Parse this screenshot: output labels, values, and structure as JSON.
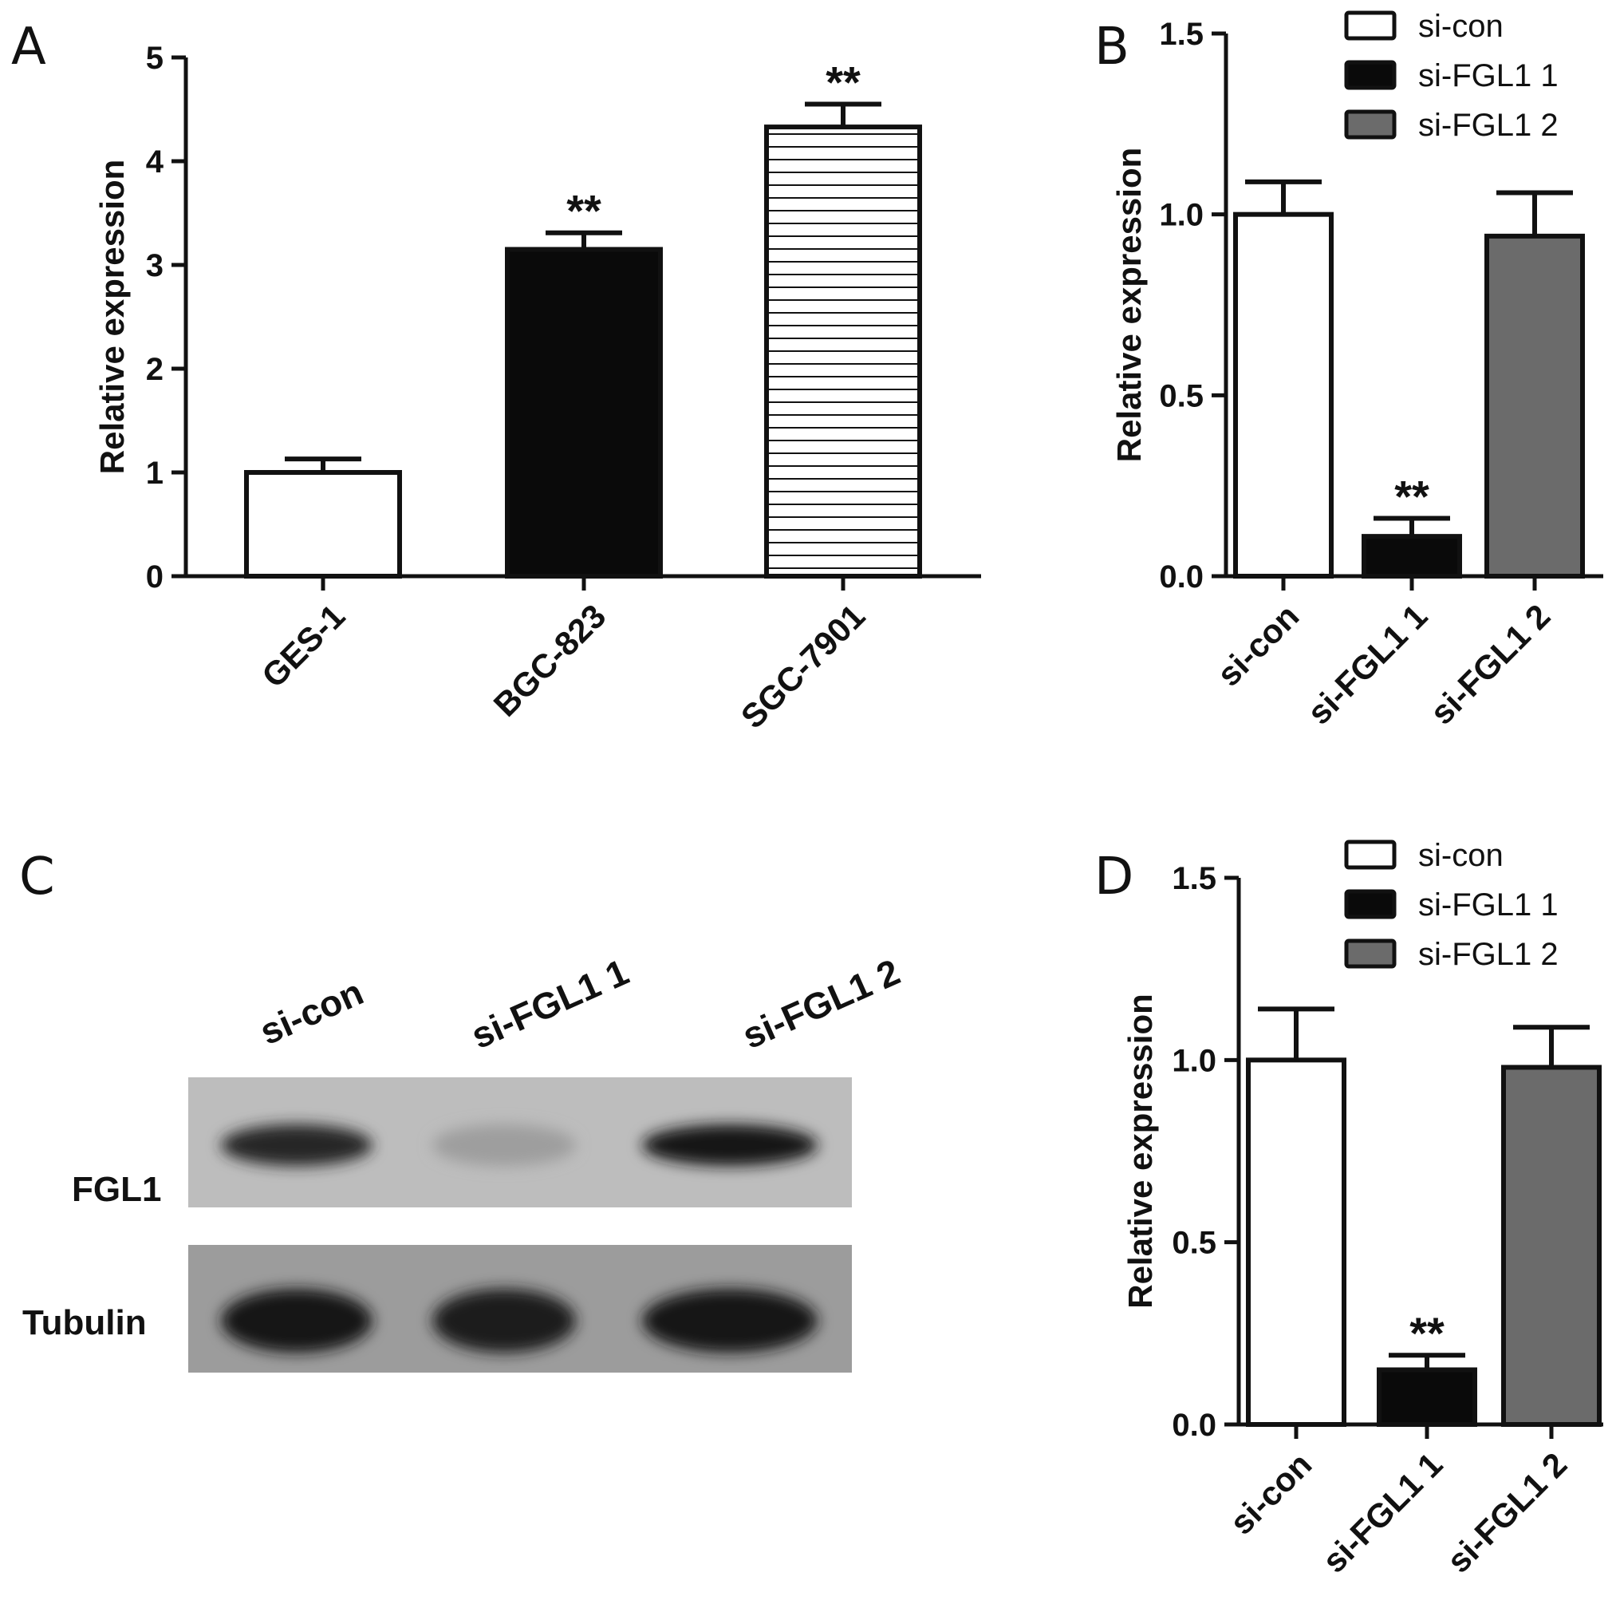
{
  "panels": {
    "A": {
      "letter": "A"
    },
    "B": {
      "letter": "B"
    },
    "C": {
      "letter": "C"
    },
    "D": {
      "letter": "D"
    }
  },
  "chart_data": [
    {
      "id": "A",
      "type": "bar",
      "ylabel": "Relative expression",
      "ylim": [
        0,
        5
      ],
      "yticks": [
        "0",
        "1",
        "2",
        "3",
        "4",
        "5"
      ],
      "categories": [
        "GES-1",
        "BGC-823",
        "SGC-7901"
      ],
      "values": [
        1.0,
        3.15,
        4.33
      ],
      "errors": [
        0.13,
        0.16,
        0.22
      ],
      "fills": [
        "white",
        "black",
        "hlines"
      ],
      "significance": [
        "",
        "**",
        "**"
      ],
      "legend": []
    },
    {
      "id": "B",
      "type": "bar",
      "ylabel": "Relative expression",
      "ylim": [
        0,
        1.5
      ],
      "yticks": [
        "0.0",
        "0.5",
        "1.0",
        "1.5"
      ],
      "categories": [
        "si-con",
        "si-FGL1  1",
        "si-FGL1  2"
      ],
      "values": [
        1.0,
        0.11,
        0.94
      ],
      "errors": [
        0.09,
        0.05,
        0.12
      ],
      "fills": [
        "white",
        "black",
        "gray"
      ],
      "significance": [
        "",
        "**",
        ""
      ],
      "legend": [
        {
          "label": "si-con",
          "fill": "white"
        },
        {
          "label": "si-FGL1  1",
          "fill": "black"
        },
        {
          "label": "si-FGL1  2",
          "fill": "gray"
        }
      ]
    },
    {
      "id": "D",
      "type": "bar",
      "ylabel": "Relative expression",
      "ylim": [
        0,
        1.5
      ],
      "yticks": [
        "0.0",
        "0.5",
        "1.0",
        "1.5"
      ],
      "categories": [
        "si-con",
        "si-FGL1 1",
        "si-FGL1  2"
      ],
      "values": [
        1.0,
        0.15,
        0.98
      ],
      "errors": [
        0.14,
        0.04,
        0.11
      ],
      "fills": [
        "white",
        "black",
        "gray"
      ],
      "significance": [
        "",
        "**",
        ""
      ],
      "legend": [
        {
          "label": "si-con",
          "fill": "white"
        },
        {
          "label": "si-FGL1 1",
          "fill": "black"
        },
        {
          "label": "si-FGL1  2",
          "fill": "gray"
        }
      ]
    }
  ],
  "blot": {
    "lanes": [
      "si-con",
      "si-FGL1 1",
      "si-FGL1 2"
    ],
    "rows": [
      {
        "label": "FGL1",
        "band_intensity": [
          0.85,
          0.22,
          0.95
        ]
      },
      {
        "label": "Tubulin",
        "band_intensity": [
          0.92,
          0.9,
          0.95
        ]
      }
    ]
  },
  "colors": {
    "black": "#0a0a0a",
    "gray": "#6b6b6b",
    "white": "#ffffff",
    "axis": "#111111"
  }
}
